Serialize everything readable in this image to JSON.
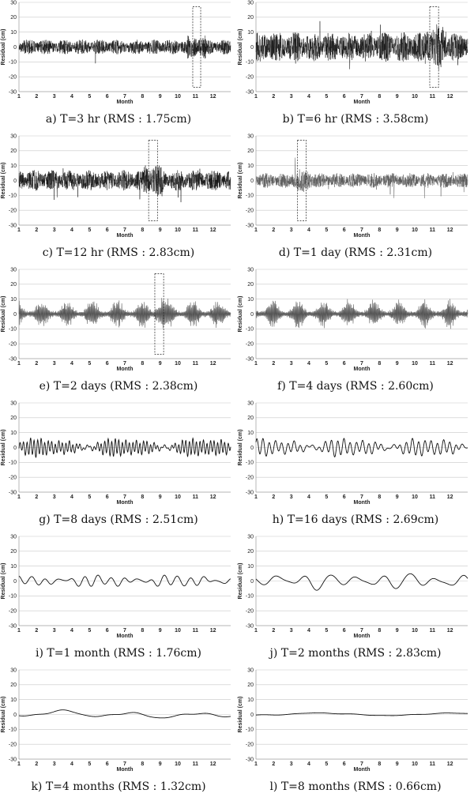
{
  "chart_data": [
    {
      "type": "line",
      "caption": "a) T=3 hr (RMS : 1.75cm)",
      "xlabel": "Month",
      "ylabel": "Residual (cm)",
      "ylim": [
        -30,
        30
      ],
      "yticks": [
        30,
        20,
        10,
        0,
        -10,
        -20,
        -30
      ],
      "xticks": [
        "1",
        "2",
        "3",
        "4",
        "5",
        "6",
        "7",
        "8",
        "9",
        "10",
        "11",
        "12"
      ],
      "xlim": [
        1,
        13
      ],
      "grid": true,
      "rms_cm": 1.75,
      "style": "noise",
      "amplitude": 5,
      "highlight_x": [
        10.85,
        11.3
      ]
    },
    {
      "type": "line",
      "caption": "b) T=6 hr (RMS : 3.58cm)",
      "xlabel": "Month",
      "ylabel": "Residual (cm)",
      "ylim": [
        -30,
        30
      ],
      "yticks": [
        30,
        20,
        10,
        0,
        -10,
        -20,
        -30
      ],
      "xticks": [
        "1",
        "2",
        "3",
        "4",
        "5",
        "6",
        "7",
        "8",
        "9",
        "10",
        "11",
        "12"
      ],
      "xlim": [
        1,
        13
      ],
      "grid": true,
      "rms_cm": 3.58,
      "style": "noise",
      "amplitude": 10,
      "highlight_x": [
        10.85,
        11.35
      ]
    },
    {
      "type": "line",
      "caption": "c) T=12 hr (RMS : 2.83cm)",
      "xlabel": "Month",
      "ylabel": "Residual (cm)",
      "ylim": [
        -30,
        30
      ],
      "yticks": [
        30,
        20,
        10,
        0,
        -10,
        -20,
        -30
      ],
      "xticks": [
        "1",
        "2",
        "3",
        "4",
        "5",
        "6",
        "7",
        "8",
        "9",
        "10",
        "11",
        "12"
      ],
      "xlim": [
        1,
        13
      ],
      "grid": true,
      "rms_cm": 2.83,
      "style": "noise",
      "amplitude": 7,
      "highlight_x": [
        8.35,
        8.85
      ]
    },
    {
      "type": "line",
      "caption": "d) T=1 day (RMS : 2.31cm)",
      "xlabel": "Month",
      "ylabel": "Residual (cm)",
      "ylim": [
        -30,
        30
      ],
      "yticks": [
        30,
        20,
        10,
        0,
        -10,
        -20,
        -30
      ],
      "xticks": [
        "1",
        "2",
        "3",
        "4",
        "5",
        "6",
        "7",
        "8",
        "9",
        "10",
        "11",
        "12"
      ],
      "xlim": [
        1,
        13
      ],
      "grid": true,
      "rms_cm": 2.31,
      "style": "noise",
      "amplitude": 5,
      "highlight_x": [
        3.35,
        3.85
      ]
    },
    {
      "type": "line",
      "caption": "e) T=2 days (RMS : 2.38cm)",
      "xlabel": "Month",
      "ylabel": "Residual (cm)",
      "ylim": [
        -30,
        30
      ],
      "yticks": [
        30,
        20,
        10,
        0,
        -10,
        -20,
        -30
      ],
      "xticks": [
        "1",
        "2",
        "3",
        "4",
        "5",
        "6",
        "7",
        "8",
        "9",
        "10",
        "11",
        "12"
      ],
      "xlim": [
        1,
        13
      ],
      "grid": true,
      "rms_cm": 2.38,
      "style": "bursts",
      "amplitude": 6,
      "highlight_x": [
        8.7,
        9.2
      ]
    },
    {
      "type": "line",
      "caption": "f) T=4 days (RMS : 2.60cm)",
      "xlabel": "Month",
      "ylabel": "Residual (cm)",
      "ylim": [
        -30,
        30
      ],
      "yticks": [
        30,
        20,
        10,
        0,
        -10,
        -20,
        -30
      ],
      "xticks": [
        "1",
        "2",
        "3",
        "4",
        "5",
        "6",
        "7",
        "8",
        "9",
        "10",
        "11",
        "12"
      ],
      "xlim": [
        1,
        13
      ],
      "grid": true,
      "rms_cm": 2.6,
      "style": "bursts",
      "amplitude": 6,
      "highlight_x": null
    },
    {
      "type": "line",
      "caption": "g) T=8 days (RMS : 2.51cm)",
      "xlabel": "Month",
      "ylabel": "Residual (cm)",
      "ylim": [
        -30,
        30
      ],
      "yticks": [
        30,
        20,
        10,
        0,
        -10,
        -20,
        -30
      ],
      "xticks": [
        "1",
        "2",
        "3",
        "4",
        "5",
        "6",
        "7",
        "8",
        "9",
        "10",
        "11",
        "12"
      ],
      "xlim": [
        1,
        13
      ],
      "grid": true,
      "rms_cm": 2.51,
      "style": "wave",
      "amplitude": 5,
      "cycles": 60,
      "highlight_x": null
    },
    {
      "type": "line",
      "caption": "h) T=16 days (RMS : 2.69cm)",
      "xlabel": "Month",
      "ylabel": "Residual (cm)",
      "ylim": [
        -30,
        30
      ],
      "yticks": [
        30,
        20,
        10,
        0,
        -10,
        -20,
        -30
      ],
      "xticks": [
        "1",
        "2",
        "3",
        "4",
        "5",
        "6",
        "7",
        "8",
        "9",
        "10",
        "11",
        "12"
      ],
      "xlim": [
        1,
        13
      ],
      "grid": true,
      "rms_cm": 2.69,
      "style": "wave",
      "amplitude": 5,
      "cycles": 34,
      "highlight_x": null
    },
    {
      "type": "line",
      "caption": "i) T=1 month (RMS : 1.76cm)",
      "xlabel": "Month",
      "ylabel": "Residual (cm)",
      "ylim": [
        -30,
        30
      ],
      "yticks": [
        30,
        20,
        10,
        0,
        -10,
        -20,
        -30
      ],
      "xticks": [
        "1",
        "2",
        "3",
        "4",
        "5",
        "6",
        "7",
        "8",
        "9",
        "10",
        "11",
        "12"
      ],
      "xlim": [
        1,
        13
      ],
      "grid": true,
      "rms_cm": 1.76,
      "style": "wave",
      "amplitude": 3.5,
      "cycles": 16,
      "highlight_x": null
    },
    {
      "type": "line",
      "caption": "j) T=2 months (RMS : 2.83cm)",
      "xlabel": "Month",
      "ylabel": "Residual (cm)",
      "ylim": [
        -30,
        30
      ],
      "yticks": [
        30,
        20,
        10,
        0,
        -10,
        -20,
        -30
      ],
      "xticks": [
        "1",
        "2",
        "3",
        "4",
        "5",
        "6",
        "7",
        "8",
        "9",
        "10",
        "11",
        "12"
      ],
      "xlim": [
        1,
        13
      ],
      "grid": true,
      "rms_cm": 2.83,
      "style": "wave",
      "amplitude": 5,
      "cycles": 8,
      "highlight_x": null
    },
    {
      "type": "line",
      "caption": "k) T=4 months (RMS : 1.32cm)",
      "xlabel": "Month",
      "ylabel": "Residual (cm)",
      "ylim": [
        -30,
        30
      ],
      "yticks": [
        30,
        20,
        10,
        0,
        -10,
        -20,
        -30
      ],
      "xticks": [
        "1",
        "2",
        "3",
        "4",
        "5",
        "6",
        "7",
        "8",
        "9",
        "10",
        "11",
        "12"
      ],
      "xlim": [
        1,
        13
      ],
      "grid": true,
      "rms_cm": 1.32,
      "style": "wave",
      "amplitude": 2.3,
      "cycles": 3.2,
      "highlight_x": null
    },
    {
      "type": "line",
      "caption": "l) T=8 months (RMS : 0.66cm)",
      "xlabel": "Month",
      "ylabel": "Residual (cm)",
      "ylim": [
        -30,
        30
      ],
      "yticks": [
        30,
        20,
        10,
        0,
        -10,
        -20,
        -30
      ],
      "xticks": [
        "1",
        "2",
        "3",
        "4",
        "5",
        "6",
        "7",
        "8",
        "9",
        "10",
        "11",
        "12"
      ],
      "xlim": [
        1,
        13
      ],
      "grid": true,
      "rms_cm": 0.66,
      "style": "wave",
      "amplitude": 1.2,
      "cycles": 1.6,
      "highlight_x": null
    }
  ]
}
